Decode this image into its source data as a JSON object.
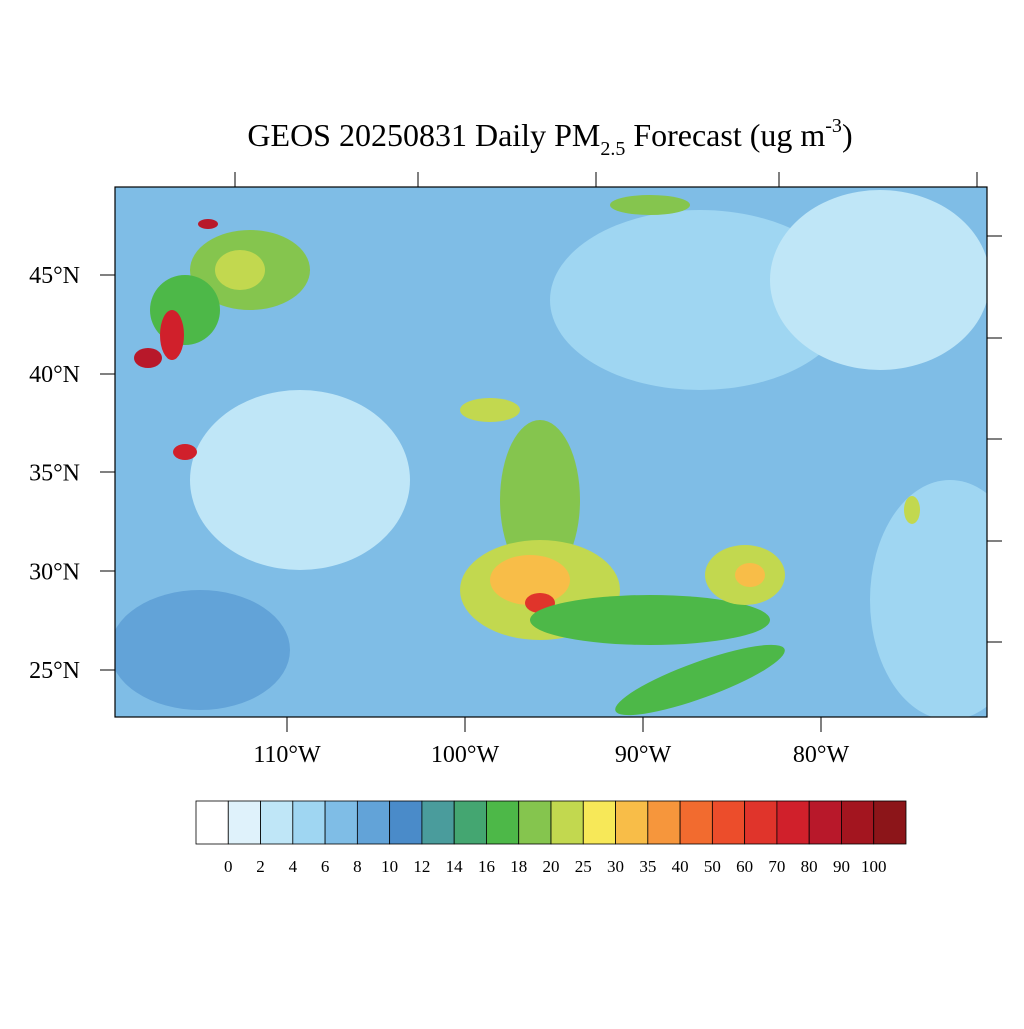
{
  "title": {
    "main": "GEOS 20250831 Daily PM",
    "subscript": "2.5",
    "rest": " Forecast (ug m",
    "superscript": "-3",
    "end": ")"
  },
  "lat_labels": [
    "45°N",
    "40°N",
    "35°N",
    "30°N",
    "25°N"
  ],
  "lon_labels": [
    "110°W",
    "100°W",
    "90°W",
    "80°W"
  ],
  "colorbar": {
    "colors": [
      "#ffffff",
      "#dff2fb",
      "#bfe6f7",
      "#9fd6f2",
      "#7fbde6",
      "#62a3d8",
      "#4a8bc9",
      "#4a9c9c",
      "#44a671",
      "#4db848",
      "#85c54e",
      "#c2d84f",
      "#f7e858",
      "#f8bd48",
      "#f6963c",
      "#f26b2f",
      "#ec4d2b",
      "#e0342b",
      "#d0202b",
      "#b8182a",
      "#a3151f",
      "#8c1519"
    ],
    "labels": [
      0,
      2,
      4,
      6,
      8,
      10,
      12,
      14,
      16,
      18,
      20,
      25,
      30,
      35,
      40,
      50,
      60,
      70,
      80,
      90,
      100
    ]
  }
}
